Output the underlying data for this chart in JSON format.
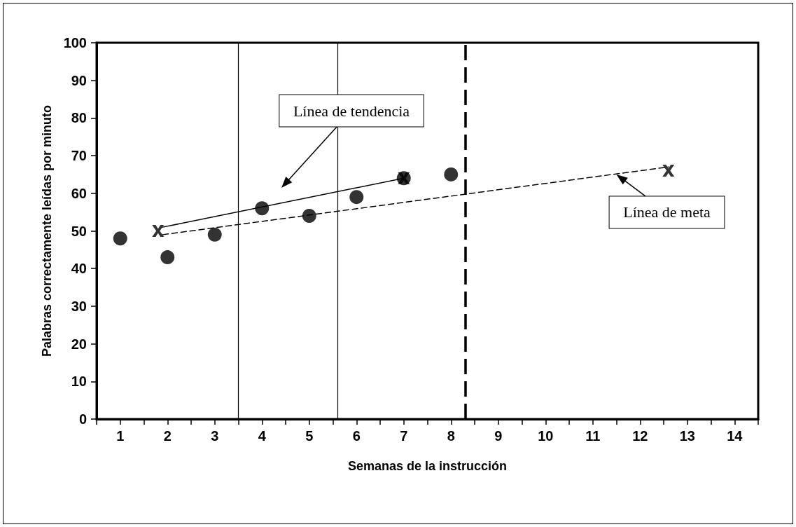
{
  "chart_data": {
    "type": "scatter",
    "xlabel": "Semanas de la instrucción",
    "ylabel": "Palabras correctamente leídas por minuto",
    "xlim": [
      0.5,
      14.5
    ],
    "xticks": [
      1,
      2,
      3,
      4,
      5,
      6,
      7,
      8,
      9,
      10,
      11,
      12,
      13,
      14,
      {
        "value": 0.5,
        "label": null
      },
      {
        "value": 1.5,
        "label": null
      },
      {
        "value": 2.5,
        "label": null
      },
      {
        "value": 3.5,
        "label": null
      },
      {
        "value": 4.5,
        "label": null
      },
      {
        "value": 5.5,
        "label": null
      },
      {
        "value": 6.5,
        "label": null
      },
      {
        "value": 7.5,
        "label": null
      },
      {
        "value": 8.5,
        "label": null
      },
      {
        "value": 9.5,
        "label": null
      },
      {
        "value": 10.5,
        "label": null
      },
      {
        "value": 11.5,
        "label": null
      },
      {
        "value": 12.5,
        "label": null
      },
      {
        "value": 13.5,
        "label": null
      },
      {
        "value": 14.5,
        "label": null
      }
    ],
    "ylim": [
      0,
      100
    ],
    "yticks": [
      0,
      10,
      20,
      30,
      40,
      50,
      60,
      70,
      80,
      90,
      100
    ],
    "grid": false,
    "series": [
      {
        "marker": "circle",
        "color": "#000000",
        "x": [
          1,
          2,
          3,
          4,
          5,
          6,
          7,
          8
        ],
        "values": [
          48,
          43,
          49,
          56,
          54,
          59,
          64,
          65
        ]
      },
      {
        "type": "scatter",
        "marker": "cross",
        "color": "#000000",
        "x": [
          1.8,
          7,
          12.6
        ],
        "values": [
          50,
          64,
          66
        ]
      },
      {
        "type": "line",
        "marker": "none",
        "line_style": "solid",
        "color": "#000000",
        "x": [
          1.9,
          7
        ],
        "values": [
          51,
          64
        ]
      },
      {
        "type": "line",
        "marker": "none",
        "line_style": "dashed",
        "color": "#000000",
        "x": [
          1.9,
          12.6
        ],
        "values": [
          49,
          67
        ]
      }
    ],
    "ref_lines": [
      {
        "axis": "x",
        "value": 3.5,
        "line_style": "solid",
        "color": "#000000"
      },
      {
        "axis": "x",
        "value": 5.6,
        "line_style": "solid",
        "color": "#000000"
      },
      {
        "axis": "x",
        "value": 8.3,
        "line_style": "dashed",
        "color": "#000000"
      }
    ],
    "annotations": [
      "Línea de tendencia",
      {
        "text": "Línea de meta",
        "x": 11.5,
        "y": 65
      }
    ]
  }
}
